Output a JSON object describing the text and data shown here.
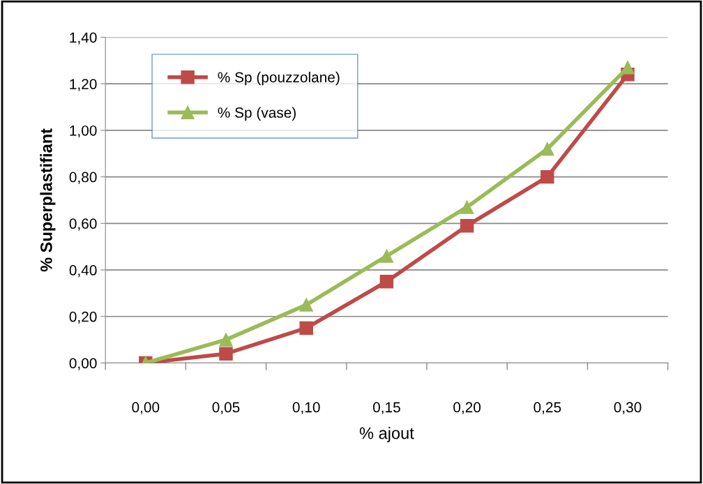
{
  "chart_data": {
    "type": "line",
    "xlabel": "% ajout",
    "ylabel": "% Superplastifiant",
    "categories": [
      "0,00",
      "0,05",
      "0,10",
      "0,15",
      "0,20",
      "0,25",
      "0,30"
    ],
    "series": [
      {
        "name": "% Sp (pouzzolane)",
        "color": "#be4b48",
        "marker": "square",
        "values": [
          0,
          0.04,
          0.15,
          0.35,
          0.59,
          0.8,
          1.24
        ]
      },
      {
        "name": "% Sp (vase)",
        "color": "#9bbb59",
        "marker": "triangle",
        "values": [
          0,
          0.1,
          0.25,
          0.46,
          0.67,
          0.92,
          1.27
        ]
      }
    ],
    "ylim": [
      0,
      1.4
    ],
    "yticks": [
      {
        "value": 0,
        "label": "0,00"
      },
      {
        "value": 0.2,
        "label": "0,20"
      },
      {
        "value": 0.4,
        "label": "0,40"
      },
      {
        "value": 0.6,
        "label": "0,60"
      },
      {
        "value": 0.8,
        "label": "0,80"
      },
      {
        "value": 1.0,
        "label": "1,00"
      },
      {
        "value": 1.2,
        "label": "1,20"
      },
      {
        "value": 1.4,
        "label": "1,40"
      }
    ],
    "grid": "y",
    "legend": "top left",
    "line_style": "solid"
  }
}
